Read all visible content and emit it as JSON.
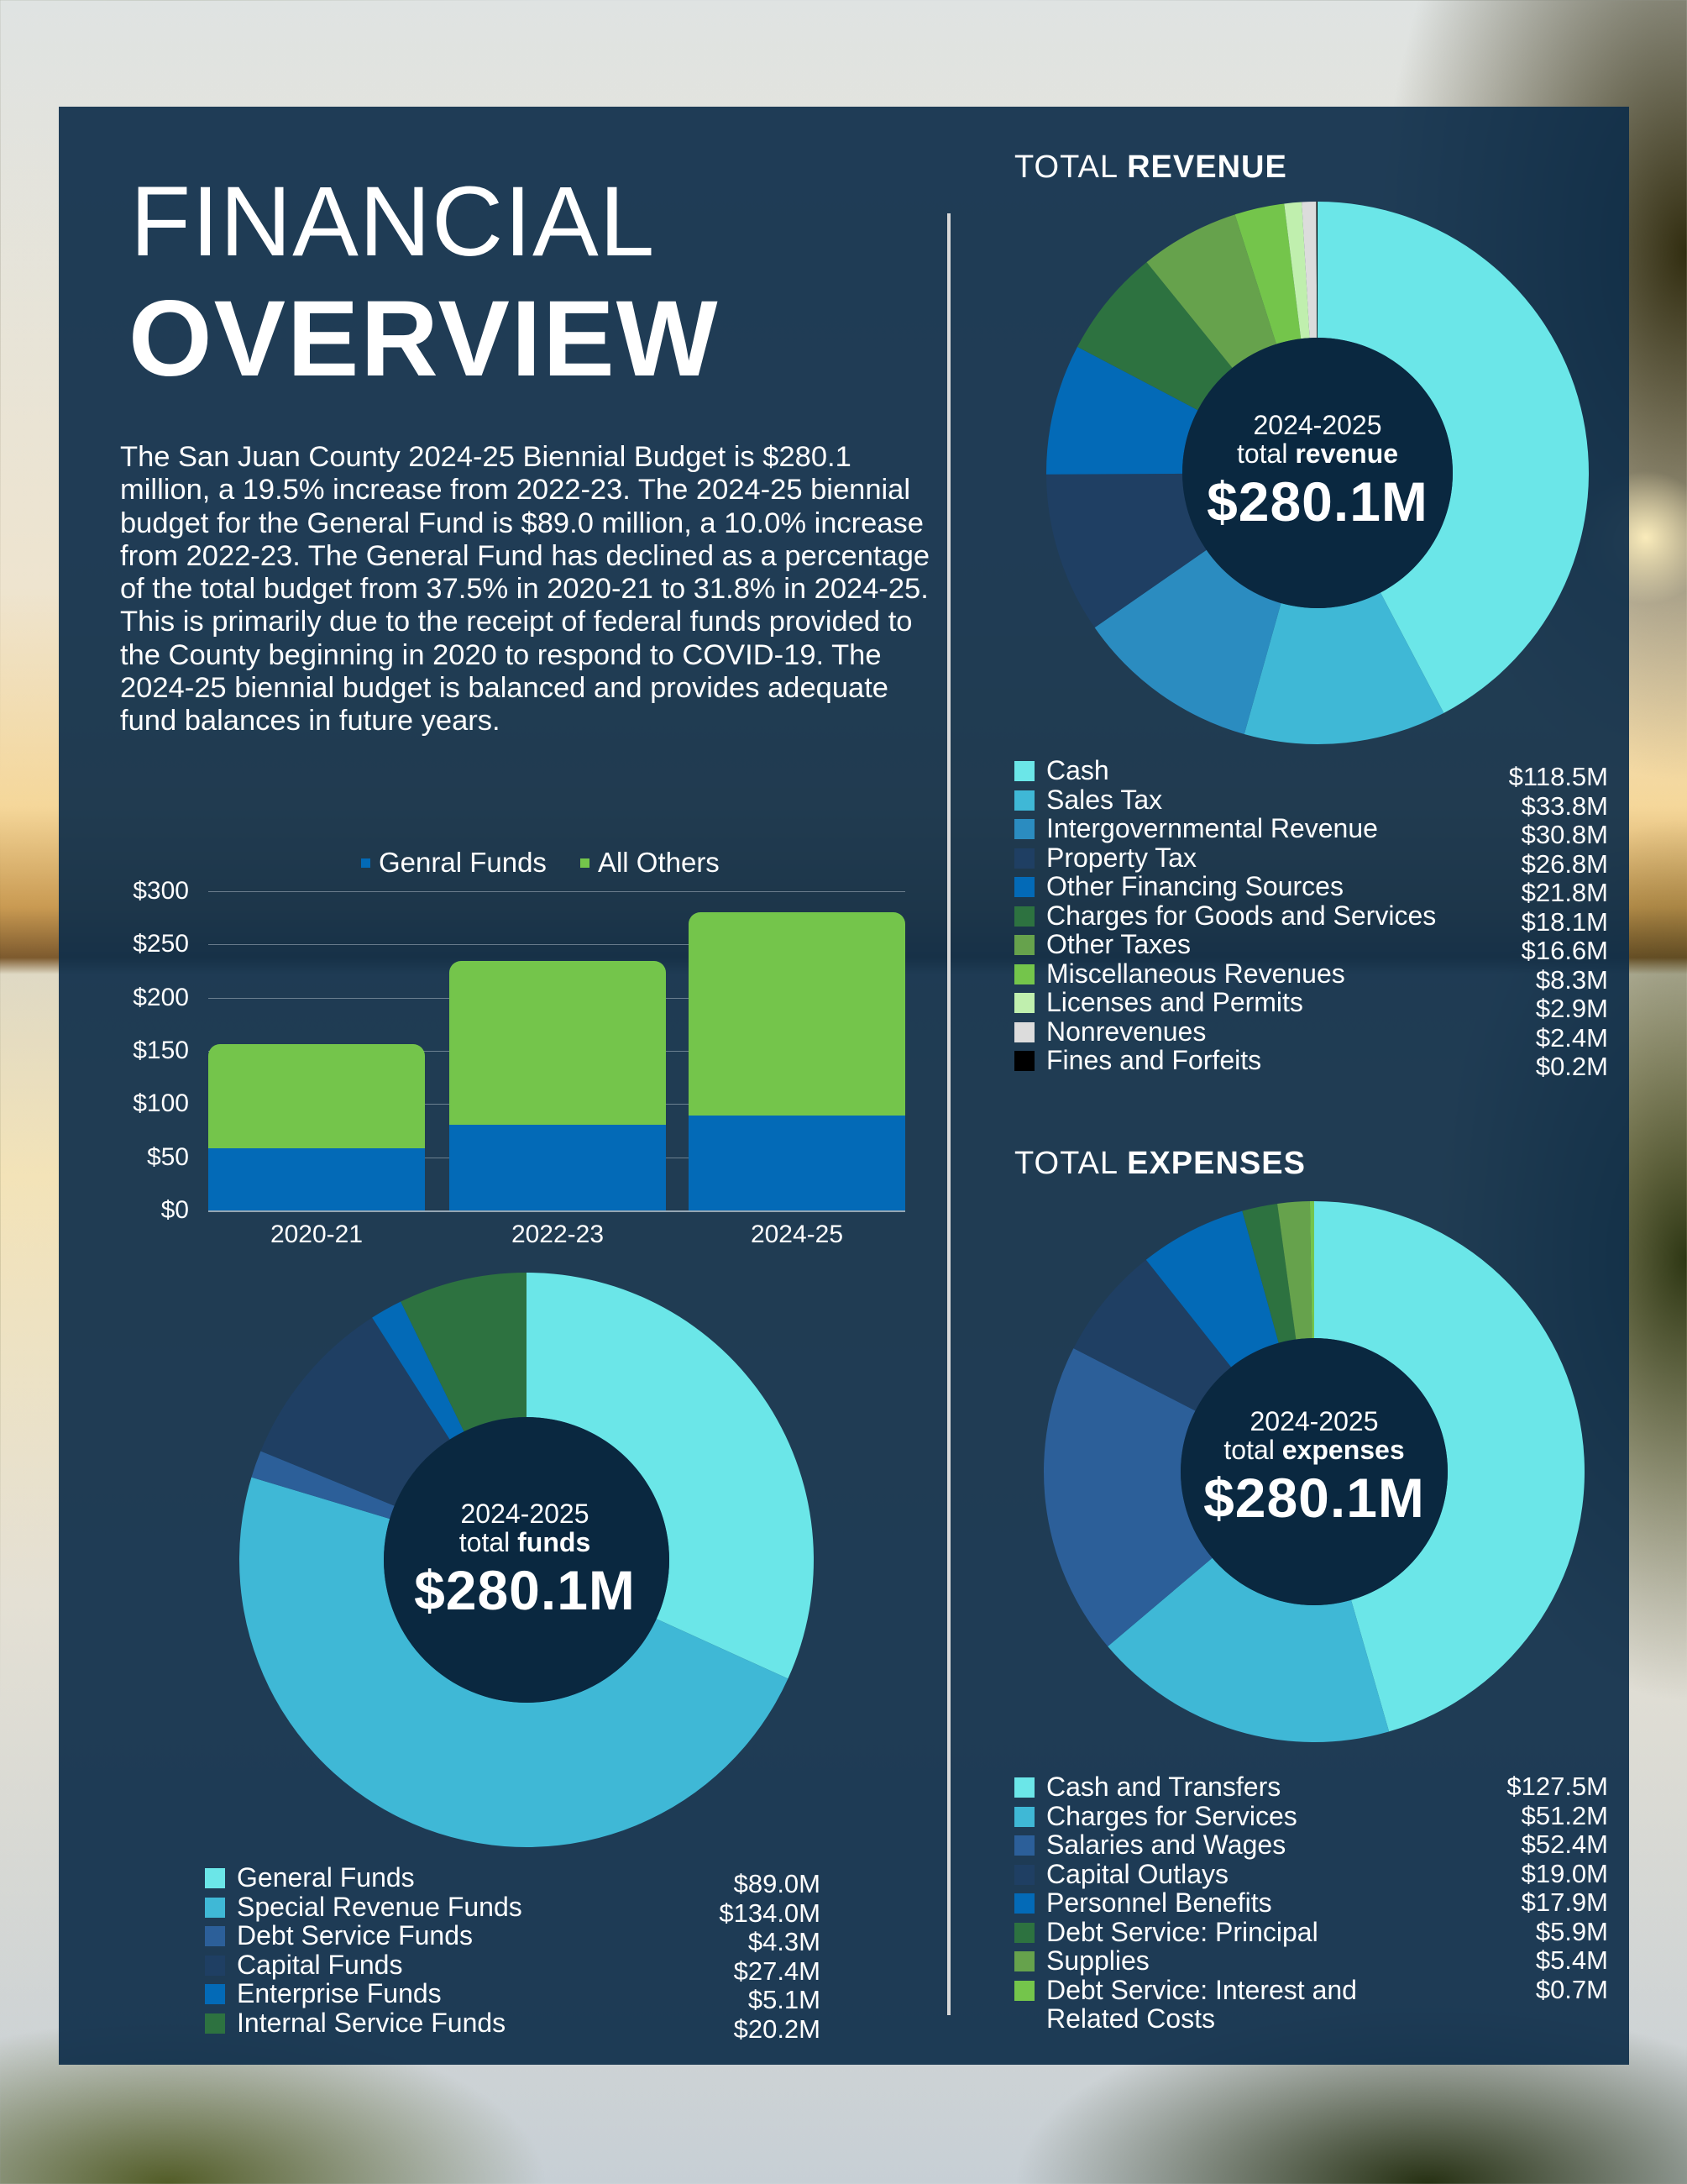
{
  "title": {
    "line1": "FINANCIAL",
    "line2": "OVERVIEW"
  },
  "intro": "The San Juan County 2024-25 Biennial Budget is $280.1 million, a 19.5% increase from 2022-23. The 2024-25 biennial budget for the General Fund is $89.0 million, a 10.0% increase from 2022-23. The General Fund has declined as a percentage of the total budget from 37.5% in 2020-21 to 31.8% in 2024-25. This is primarily due to the receipt of federal funds provided to the County beginning in 2020 to respond to COVID-19. The 2024-25 biennial budget is balanced and provides adequate fund balances in future years.",
  "colors": {
    "panel": "#0e2e4a",
    "general_funds_bar": "#036ab7",
    "all_others_bar": "#74c54b",
    "divider": "#d8d8d8"
  },
  "revenue": {
    "title_light": "TOTAL",
    "title_bold": "REVENUE",
    "center_year": "2024-2025",
    "center_label_light": "total",
    "center_label_bold": "revenue",
    "center_total": "$280.1M"
  },
  "expenses": {
    "title_light": "TOTAL",
    "title_bold": "EXPENSES",
    "center_year": "2024-2025",
    "center_label_light": "total",
    "center_label_bold": "expenses",
    "center_total": "$280.1M"
  },
  "funds": {
    "center_year": "2024-2025",
    "center_label_light": "total",
    "center_label_bold": "funds",
    "center_total": "$280.1M"
  },
  "chart_data": [
    {
      "type": "bar",
      "stacked": true,
      "title": "",
      "categories": [
        "2020-21",
        "2022-23",
        "2024-25"
      ],
      "series": [
        {
          "name": "Genral Funds",
          "color": "#036ab7",
          "values": [
            58.5,
            80.9,
            89.0
          ]
        },
        {
          "name": "All Others",
          "color": "#74c54b",
          "values": [
            97.8,
            153.5,
            191.1
          ]
        }
      ],
      "yticks": [
        "$0",
        "$50",
        "$100",
        "$150",
        "$200",
        "$250",
        "$300"
      ],
      "ylim": [
        0,
        300
      ],
      "xlabel": "",
      "ylabel": "",
      "grid": true,
      "legend_position": "top"
    },
    {
      "type": "pie",
      "donut": true,
      "title": "TOTAL REVENUE",
      "center_text": "2024-2025 total revenue $280.1M",
      "labels": [
        "Cash",
        "Sales Tax",
        "Intergovernmental Revenue",
        "Property Tax",
        "Other Financing Sources",
        "Charges for Goods and Services",
        "Other Taxes",
        "Miscellaneous Revenues",
        "Licenses and Permits",
        "Nonrevenues",
        "Fines and Forfeits"
      ],
      "values": [
        118.5,
        33.8,
        30.8,
        26.8,
        21.8,
        18.1,
        16.6,
        8.3,
        2.9,
        2.4,
        0.2
      ],
      "display_values": [
        "$118.5M",
        "$33.8M",
        "$30.8M",
        "$26.8M",
        "$21.8M",
        "$18.1M",
        "$16.6M",
        "$8.3M",
        "$2.9M",
        "$2.4M",
        "$0.2M"
      ],
      "colors": [
        "#6be6e8",
        "#3fb8d6",
        "#2b8cc0",
        "#1f3f63",
        "#036ab7",
        "#2d7240",
        "#66a24c",
        "#74c54b",
        "#c0efae",
        "#dcdcdc",
        "#000000"
      ],
      "legend_position": "bottom"
    },
    {
      "type": "pie",
      "donut": true,
      "title": "TOTAL EXPENSES",
      "center_text": "2024-2025 total expenses $280.1M",
      "labels": [
        "Cash and Transfers",
        "Charges for Services",
        "Salaries and Wages",
        "Capital Outlays",
        "Personnel Benefits",
        "Debt Service: Principal",
        "Supplies",
        "Debt Service: Interest and Related Costs"
      ],
      "values": [
        127.5,
        51.2,
        52.4,
        19.0,
        17.9,
        5.9,
        5.4,
        0.7
      ],
      "display_values": [
        "$127.5M",
        "$51.2M",
        "$52.4M",
        "$19.0M",
        "$17.9M",
        "$5.9M",
        "$5.4M",
        "$0.7M"
      ],
      "colors": [
        "#6be6e8",
        "#3fb8d6",
        "#2c5f99",
        "#1f3f63",
        "#036ab7",
        "#2d7240",
        "#66a24c",
        "#74c54b"
      ],
      "legend_position": "bottom"
    },
    {
      "type": "pie",
      "donut": true,
      "title": "",
      "center_text": "2024-2025 total funds $280.1M",
      "labels": [
        "General Funds",
        "Special Revenue Funds",
        "Debt Service Funds",
        "Capital Funds",
        "Enterprise Funds",
        "Internal Service Funds"
      ],
      "values": [
        89.0,
        134.0,
        4.3,
        27.4,
        5.1,
        20.2
      ],
      "display_values": [
        "$89.0M",
        "$134.0M",
        "$4.3M",
        "$27.4M",
        "$5.1M",
        "$20.2M"
      ],
      "colors": [
        "#6be6e8",
        "#3fb8d6",
        "#2c5f99",
        "#1f3f63",
        "#036ab7",
        "#2d7240"
      ],
      "legend_position": "bottom"
    }
  ]
}
